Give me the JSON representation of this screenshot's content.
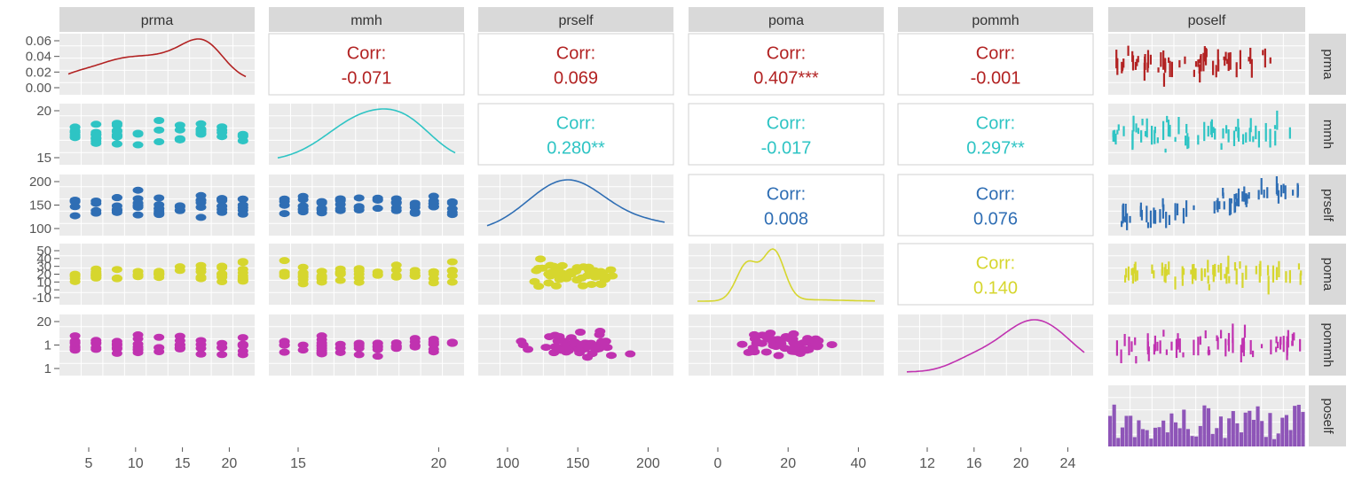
{
  "chart_data": {
    "type": "scatter",
    "variables": [
      "prma",
      "mmh",
      "prself",
      "poma",
      "pommh",
      "poself"
    ],
    "colors": {
      "prma": "#b22222",
      "mmh": "#2ec4c4",
      "prself": "#2f6eb4",
      "poma": "#d6d62e",
      "pommh": "#c032b0",
      "poself": "#8e55b8"
    },
    "grid": true,
    "correlations": [
      {
        "row": "prma",
        "col": "mmh",
        "label": "Corr:",
        "value": "-0.071"
      },
      {
        "row": "prma",
        "col": "prself",
        "label": "Corr:",
        "value": "0.069"
      },
      {
        "row": "prma",
        "col": "poma",
        "label": "Corr:",
        "value": "0.407***"
      },
      {
        "row": "prma",
        "col": "pommh",
        "label": "Corr:",
        "value": "-0.001"
      },
      {
        "row": "mmh",
        "col": "prself",
        "label": "Corr:",
        "value": "0.280**"
      },
      {
        "row": "mmh",
        "col": "poma",
        "label": "Corr:",
        "value": "-0.017"
      },
      {
        "row": "mmh",
        "col": "pommh",
        "label": "Corr:",
        "value": "0.297**"
      },
      {
        "row": "prself",
        "col": "poma",
        "label": "Corr:",
        "value": "0.008"
      },
      {
        "row": "prself",
        "col": "pommh",
        "label": "Corr:",
        "value": "0.076"
      },
      {
        "row": "poma",
        "col": "pommh",
        "label": "Corr:",
        "value": "0.140"
      }
    ],
    "x_axes": [
      {
        "var": "prma",
        "range": [
          1,
          21
        ],
        "ticks": [
          "5",
          "10",
          "15",
          "20"
        ]
      },
      {
        "var": "mmh",
        "range": [
          12,
          24
        ],
        "ticks": [
          "15",
          "20"
        ]
      },
      {
        "var": "prself",
        "range": [
          70,
          205
        ],
        "ticks": [
          "100",
          "150",
          "200"
        ]
      },
      {
        "var": "poma",
        "range": [
          -10,
          52
        ],
        "ticks": [
          "0",
          "20",
          "40"
        ]
      },
      {
        "var": "pommh",
        "range": [
          10,
          24
        ],
        "ticks": [
          "12",
          "16",
          "20",
          "24"
        ]
      },
      {
        "var": "poself",
        "range": [
          0,
          1
        ],
        "ticks": []
      }
    ],
    "y_axes": [
      {
        "var": "prma",
        "range": [
          0,
          0.075
        ],
        "ticks": [
          "0.06",
          "0.04",
          "0.02",
          "0.00"
        ]
      },
      {
        "var": "mmh",
        "range": [
          12,
          24
        ],
        "ticks": [
          "20",
          "15"
        ]
      },
      {
        "var": "prself",
        "range": [
          70,
          205
        ],
        "ticks": [
          "200",
          "150",
          "100"
        ]
      },
      {
        "var": "poma",
        "range": [
          -10,
          52
        ],
        "ticks": [
          "50",
          "40",
          "30",
          "20",
          "10",
          "0",
          "-10"
        ]
      },
      {
        "var": "pommh",
        "range": [
          10,
          24
        ],
        "ticks": [
          "20",
          "1",
          "1"
        ]
      },
      {
        "var": "poself",
        "range": [
          0,
          1
        ],
        "ticks": []
      }
    ]
  }
}
